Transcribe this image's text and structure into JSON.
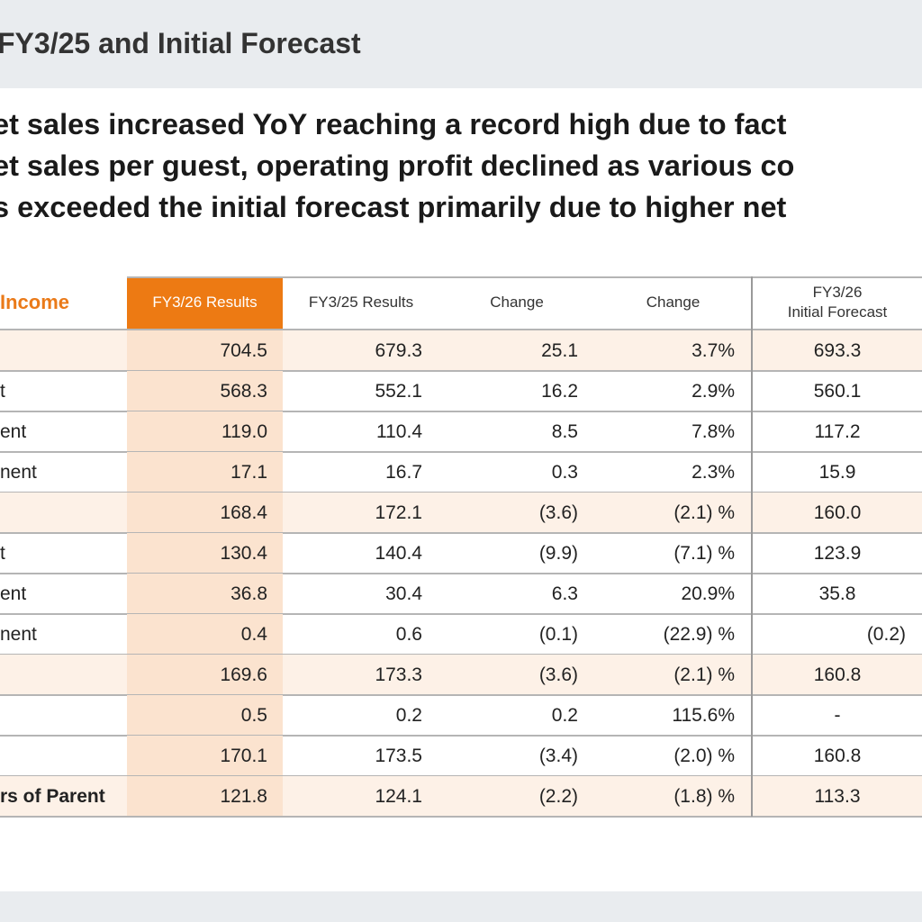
{
  "slide": {
    "title": "FY3/25 and Initial Forecast",
    "summary_lines": [
      "et sales increased YoY reaching a record high due to fact",
      "et sales per guest, operating profit declined as various co",
      "s exceeded the initial forecast primarily due to higher net"
    ]
  },
  "table": {
    "section_label": "Income",
    "headers": {
      "fy26_results": "FY3/26 Results",
      "fy25_results": "FY3/25 Results",
      "change_amount": "Change",
      "change_pct": "Change",
      "forecast_line1": "FY3/26",
      "forecast_line2": "Initial Forecast"
    },
    "rows": [
      {
        "label": "",
        "fy26": "704.5",
        "fy25": "679.3",
        "chg": "25.1",
        "pct": "3.7%",
        "fc": "693.3"
      },
      {
        "label": "t",
        "fy26": "568.3",
        "fy25": "552.1",
        "chg": "16.2",
        "pct": "2.9%",
        "fc": "560.1"
      },
      {
        "label": "ent",
        "fy26": "119.0",
        "fy25": "110.4",
        "chg": "8.5",
        "pct": "7.8%",
        "fc": "117.2"
      },
      {
        "label": "nent",
        "fy26": "17.1",
        "fy25": "16.7",
        "chg": "0.3",
        "pct": "2.3%",
        "fc": "15.9"
      },
      {
        "label": "",
        "fy26": "168.4",
        "fy25": "172.1",
        "chg": "(3.6)",
        "pct": "(2.1) %",
        "fc": "160.0"
      },
      {
        "label": "t",
        "fy26": "130.4",
        "fy25": "140.4",
        "chg": "(9.9)",
        "pct": "(7.1) %",
        "fc": "123.9"
      },
      {
        "label": "ent",
        "fy26": "36.8",
        "fy25": "30.4",
        "chg": "6.3",
        "pct": "20.9%",
        "fc": "35.8"
      },
      {
        "label": "nent",
        "fy26": "0.4",
        "fy25": "0.6",
        "chg": "(0.1)",
        "pct": "(22.9) %",
        "fc": "(0.2)"
      },
      {
        "label": "",
        "fy26": "169.6",
        "fy25": "173.3",
        "chg": "(3.6)",
        "pct": "(2.1) %",
        "fc": "160.8"
      },
      {
        "label": "",
        "fy26": "0.5",
        "fy25": "0.2",
        "chg": "0.2",
        "pct": "115.6%",
        "fc": "-"
      },
      {
        "label": "",
        "fy26": "170.1",
        "fy25": "173.5",
        "chg": "(3.4)",
        "pct": "(2.0) %",
        "fc": "160.8"
      },
      {
        "label": "rs of Parent",
        "fy26": "121.8",
        "fy25": "124.1",
        "chg": "(2.2)",
        "pct": "(1.8) %",
        "fc": "113.3"
      }
    ]
  },
  "colors": {
    "accent": "#ed7a13",
    "highlight_column": "#fbe3cf",
    "highlight_row": "#fdf1e7",
    "band": "#e9ecef"
  }
}
